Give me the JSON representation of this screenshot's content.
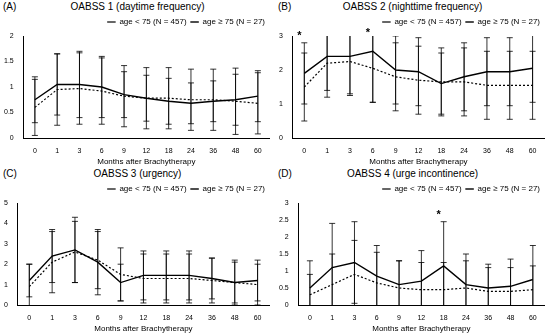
{
  "chart_data": [
    {
      "type": "line",
      "panel": "(A)",
      "title": "OABSS 1 (daytime frequency)",
      "x_label": "Months after Brachytherapy",
      "categories": [
        "0",
        "1",
        "3",
        "6",
        "9",
        "12",
        "18",
        "24",
        "36",
        "48",
        "60"
      ],
      "series": [
        {
          "name": "age < 75 (N = 457)",
          "color": "#000000",
          "line_style": "dotted",
          "values": [
            0.6,
            0.95,
            0.97,
            0.92,
            0.82,
            0.78,
            0.78,
            0.75,
            0.75,
            0.72,
            0.68
          ],
          "errors": [
            0.55,
            0.7,
            0.7,
            0.65,
            0.6,
            0.6,
            0.6,
            0.6,
            0.6,
            0.65,
            0.6
          ]
        },
        {
          "name": "age ≥ 75 (N = 27)",
          "color": "#000000",
          "line_style": "solid",
          "values": [
            0.75,
            1.05,
            1.05,
            1.0,
            0.85,
            0.78,
            0.72,
            0.68,
            0.72,
            0.75,
            0.82
          ],
          "errors": [
            0.45,
            0.6,
            0.65,
            0.6,
            0.45,
            0.45,
            0.45,
            0.4,
            0.4,
            0.5,
            0.5
          ]
        }
      ],
      "ylim": [
        0,
        2
      ],
      "yticks": [
        0,
        0.5,
        1,
        1.5,
        2
      ],
      "grid": false,
      "legend": "upper right",
      "annotations": []
    },
    {
      "type": "line",
      "panel": "(B)",
      "title": "OABSS 2 (nighttime frequency)",
      "x_label": "Months after Brachytherapy",
      "categories": [
        "0",
        "1",
        "3",
        "6",
        "9",
        "12",
        "18",
        "24",
        "36",
        "48",
        "60"
      ],
      "series": [
        {
          "name": "age < 75 (N = 457)",
          "color": "#000000",
          "line_style": "dotted",
          "values": [
            1.5,
            2.2,
            2.25,
            2.05,
            1.8,
            1.7,
            1.65,
            1.65,
            1.55,
            1.55,
            1.55
          ],
          "errors": [
            1.0,
            1.0,
            1.0,
            1.0,
            1.0,
            1.0,
            1.0,
            1.0,
            1.0,
            1.0,
            1.0
          ]
        },
        {
          "name": "age ≥ 75 (N = 27)",
          "color": "#000000",
          "line_style": "solid",
          "values": [
            1.9,
            2.4,
            2.4,
            2.55,
            2.0,
            1.95,
            1.6,
            1.8,
            1.95,
            1.95,
            2.05
          ],
          "errors": [
            0.9,
            1.0,
            1.1,
            1.5,
            1.0,
            1.0,
            0.9,
            1.0,
            1.0,
            1.0,
            1.0
          ]
        }
      ],
      "ylim": [
        0,
        3
      ],
      "yticks": [
        0,
        1,
        2,
        3
      ],
      "grid": false,
      "legend": "upper right",
      "annotations": [
        {
          "category": "0",
          "text": "*"
        },
        {
          "category": "6",
          "text": "*"
        }
      ]
    },
    {
      "type": "line",
      "panel": "(C)",
      "title": "OABSS 3 (urgency)",
      "x_label": "Months after Brachytherapy",
      "categories": [
        "0",
        "1",
        "3",
        "6",
        "9",
        "12",
        "18",
        "24",
        "36",
        "48",
        "60"
      ],
      "series": [
        {
          "name": "age < 75 (N = 457)",
          "color": "#000000",
          "line_style": "dotted",
          "values": [
            0.9,
            2.1,
            2.6,
            2.2,
            1.5,
            1.3,
            1.3,
            1.3,
            1.2,
            1.1,
            1.0
          ],
          "errors": [
            1.1,
            1.5,
            1.5,
            1.4,
            1.3,
            1.2,
            1.2,
            1.2,
            1.1,
            1.1,
            1.0
          ]
        },
        {
          "name": "age ≥ 75 (N = 27)",
          "color": "#000000",
          "line_style": "solid",
          "values": [
            1.2,
            2.4,
            2.7,
            2.1,
            1.1,
            1.45,
            1.45,
            1.45,
            1.3,
            1.1,
            1.2
          ],
          "errors": [
            0.8,
            1.3,
            1.6,
            1.6,
            0.9,
            1.2,
            1.2,
            1.2,
            1.0,
            1.0,
            1.0
          ]
        }
      ],
      "ylim": [
        0,
        5
      ],
      "yticks": [
        0,
        1,
        2,
        3,
        4,
        5
      ],
      "grid": false,
      "legend": "upper right",
      "annotations": []
    },
    {
      "type": "line",
      "panel": "(D)",
      "title": "OABSS 4 (urge incontinence)",
      "x_label": "Months after Brachytherapy",
      "categories": [
        "0",
        "1",
        "3",
        "6",
        "9",
        "12",
        "18",
        "24",
        "36",
        "48",
        "60"
      ],
      "series": [
        {
          "name": "age < 75 (N = 457)",
          "color": "#000000",
          "line_style": "dotted",
          "values": [
            0.3,
            0.6,
            0.9,
            0.65,
            0.5,
            0.45,
            0.45,
            0.5,
            0.4,
            0.4,
            0.45
          ],
          "errors": [
            0.6,
            0.9,
            1.0,
            0.9,
            0.8,
            0.8,
            0.8,
            0.8,
            0.7,
            0.7,
            0.7
          ]
        },
        {
          "name": "age ≥ 75 (N = 27)",
          "color": "#000000",
          "line_style": "solid",
          "values": [
            0.5,
            1.1,
            1.25,
            0.85,
            0.6,
            0.7,
            1.15,
            0.6,
            0.5,
            0.55,
            0.75
          ],
          "errors": [
            0.8,
            1.3,
            1.2,
            0.9,
            0.7,
            0.9,
            1.3,
            0.9,
            0.7,
            0.8,
            1.0
          ]
        }
      ],
      "ylim": [
        0,
        3
      ],
      "yticks": [
        0,
        0.5,
        1,
        1.5,
        2,
        2.5,
        3
      ],
      "grid": false,
      "legend": "upper right",
      "annotations": [
        {
          "category": "18",
          "text": "*"
        }
      ]
    }
  ]
}
